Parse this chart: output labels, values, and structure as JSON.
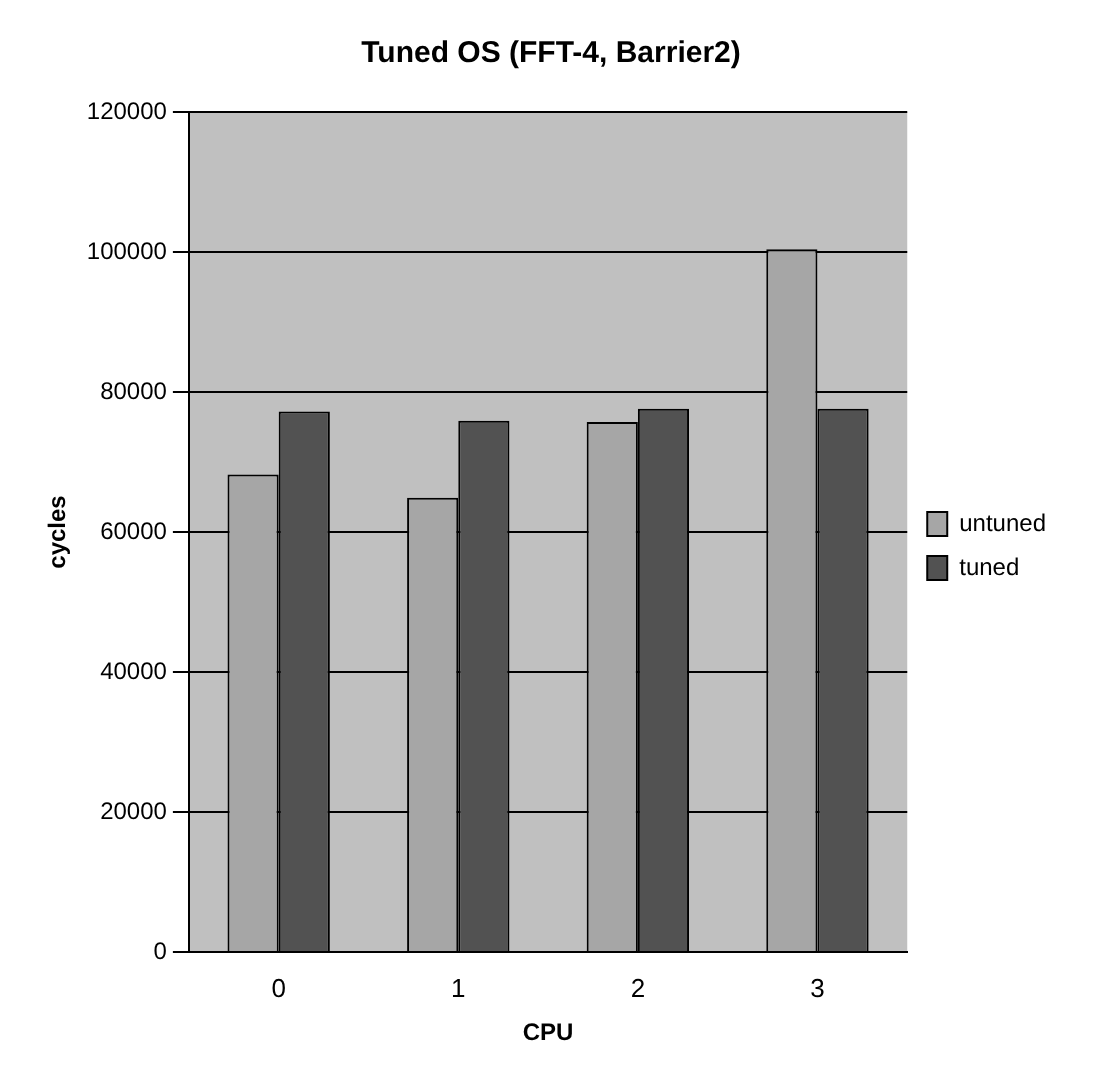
{
  "chart_data": {
    "type": "bar",
    "title": "Tuned OS (FFT-4, Barrier2)",
    "xlabel": "CPU",
    "ylabel": "cycles",
    "categories": [
      "0",
      "1",
      "2",
      "3"
    ],
    "series": [
      {
        "name": "untuned",
        "color": "#a6a6a6",
        "values": [
          68200,
          64900,
          75700,
          100400
        ]
      },
      {
        "name": "tuned",
        "color": "#525252",
        "values": [
          77200,
          75900,
          77600,
          77600
        ]
      }
    ],
    "ylim": [
      0,
      120000
    ],
    "yticks": [
      0,
      20000,
      40000,
      60000,
      80000,
      100000,
      120000
    ],
    "grid": "y",
    "legend": "right"
  }
}
